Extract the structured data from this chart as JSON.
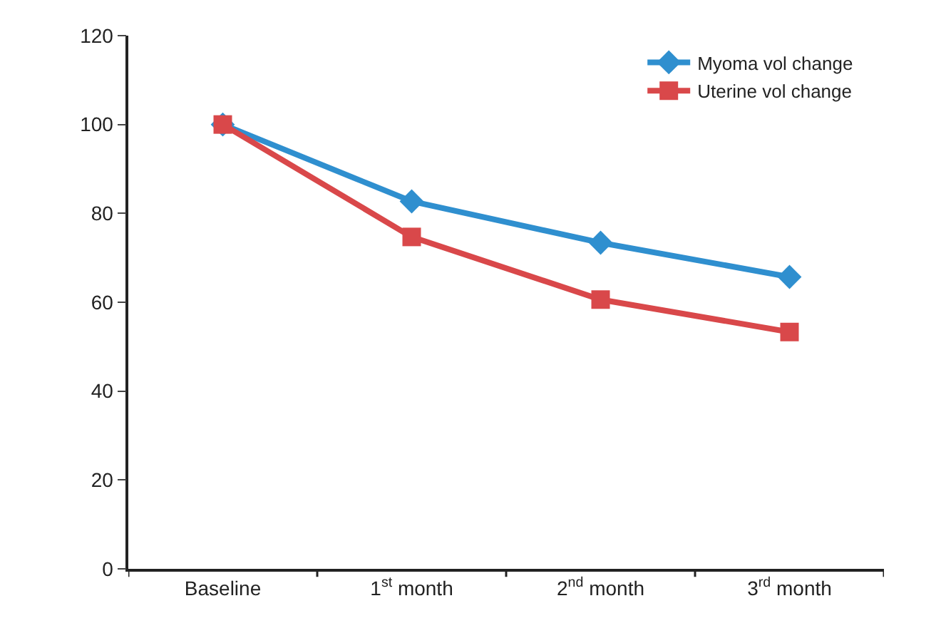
{
  "chart_data": {
    "type": "line",
    "categories": [
      "Baseline",
      "1$^{st}$ month",
      "2$^{nd}$ month",
      "3$^{rd}$ month"
    ],
    "series": [
      {
        "name": "Myoma vol change",
        "color": "#2f8fcf",
        "marker": "diamond",
        "values": [
          100,
          82.7,
          73.4,
          65.7
        ]
      },
      {
        "name": "Uterine vol change",
        "color": "#d9484a",
        "marker": "square",
        "values": [
          100,
          74.7,
          60.6,
          53.3
        ]
      }
    ],
    "ylim": [
      0,
      120
    ],
    "yticks": [
      0,
      20,
      40,
      60,
      80,
      100,
      120
    ],
    "legend": "top right",
    "line_style": "solid"
  }
}
